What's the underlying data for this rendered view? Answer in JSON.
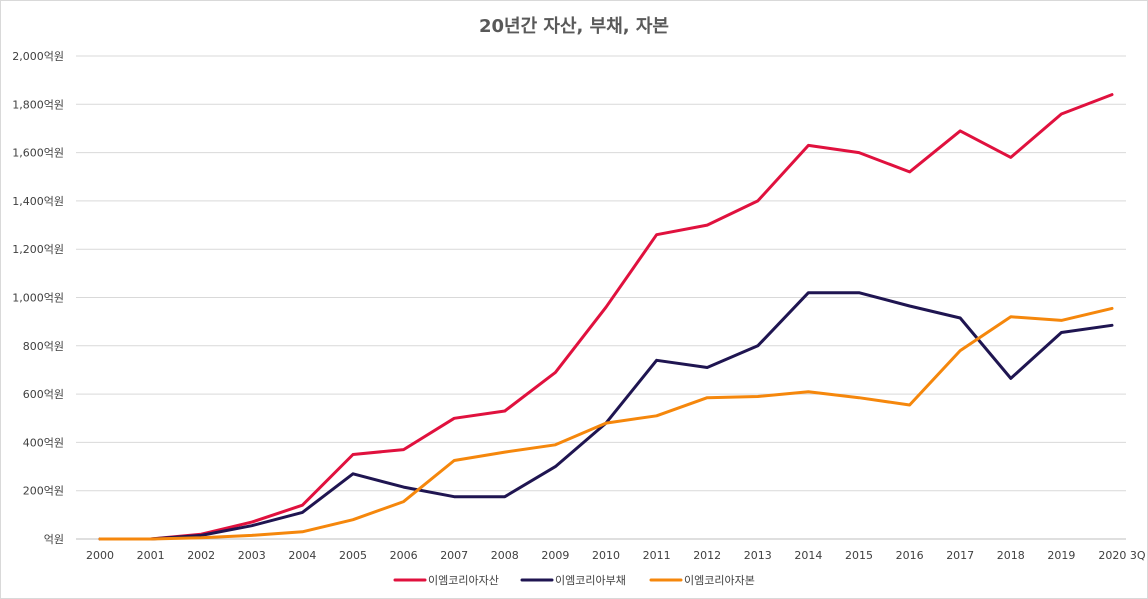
{
  "chart_data": {
    "type": "line",
    "title": "20년간 자산, 부채, 자본",
    "xlabel": "",
    "ylabel": "",
    "categories": [
      "2000",
      "2001",
      "2002",
      "2003",
      "2004",
      "2005",
      "2006",
      "2007",
      "2008",
      "2009",
      "2010",
      "2011",
      "2012",
      "2013",
      "2014",
      "2015",
      "2016",
      "2017",
      "2018",
      "2019",
      "2020 3Q"
    ],
    "ylim": [
      0,
      2000
    ],
    "y_ticks": [
      0,
      200,
      400,
      600,
      800,
      1000,
      1200,
      1400,
      1600,
      1800,
      2000
    ],
    "y_tick_labels": [
      "억원",
      "200억원",
      "400억원",
      "600억원",
      "800억원",
      "1,000억원",
      "1,200억원",
      "1,400억원",
      "1,600억원",
      "1,800억원",
      "2,000억원"
    ],
    "grid": true,
    "legend_position": "bottom",
    "series": [
      {
        "name": "이엠코리아자산",
        "color": "#e0113e",
        "values": [
          0,
          0,
          20,
          70,
          140,
          350,
          370,
          500,
          530,
          690,
          960,
          1260,
          1300,
          1400,
          1630,
          1600,
          1520,
          1690,
          1580,
          1760,
          1840
        ]
      },
      {
        "name": "이엠코리아부채",
        "color": "#1f1551",
        "values": [
          0,
          0,
          15,
          55,
          110,
          270,
          215,
          175,
          175,
          300,
          480,
          740,
          710,
          800,
          1020,
          1020,
          965,
          915,
          665,
          855,
          885
        ]
      },
      {
        "name": "이엠코리아자본",
        "color": "#f5870c",
        "values": [
          0,
          0,
          5,
          15,
          30,
          80,
          155,
          325,
          360,
          390,
          480,
          510,
          585,
          590,
          610,
          585,
          555,
          780,
          920,
          905,
          955
        ]
      }
    ]
  }
}
